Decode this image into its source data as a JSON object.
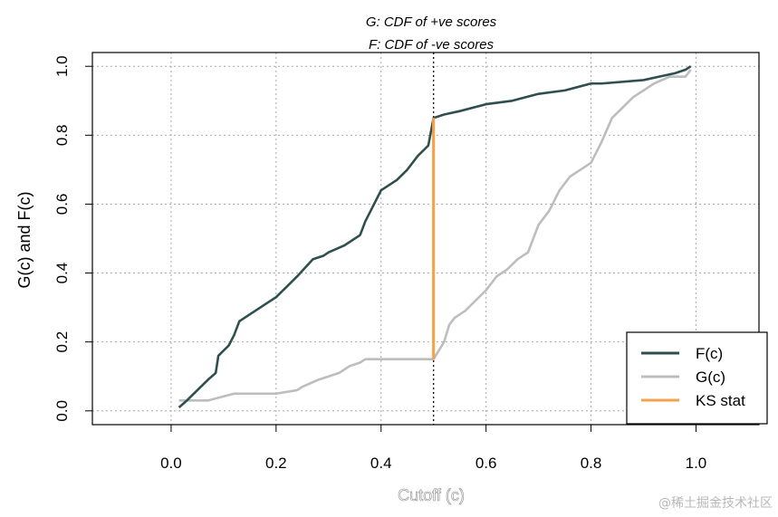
{
  "chart_data": {
    "type": "line",
    "title_line1": "G: CDF of +ve scores",
    "title_line2": "F: CDF of -ve scores",
    "xlabel": "Cutoff (c)",
    "ylabel": "G(c) and F(c)",
    "xlim": [
      -0.15,
      1.12
    ],
    "ylim": [
      -0.04,
      1.04
    ],
    "xticks": [
      0.0,
      0.2,
      0.4,
      0.6,
      0.8,
      1.0
    ],
    "xtick_labels": [
      "0.0",
      "0.2",
      "0.4",
      "0.6",
      "0.8",
      "1.0"
    ],
    "yticks": [
      0.0,
      0.2,
      0.4,
      0.6,
      0.8,
      1.0
    ],
    "ytick_labels": [
      "0.0",
      "0.2",
      "0.4",
      "0.6",
      "0.8",
      "1.0"
    ],
    "grid": true,
    "cutoff_line_x": 0.5,
    "legend_position": "bottom-right",
    "series": [
      {
        "name": "F(c)",
        "color": "#2f4f4f",
        "x": [
          0.015,
          0.03,
          0.05,
          0.07,
          0.085,
          0.09,
          0.11,
          0.12,
          0.13,
          0.15,
          0.2,
          0.22,
          0.24,
          0.27,
          0.29,
          0.3,
          0.33,
          0.36,
          0.37,
          0.38,
          0.39,
          0.4,
          0.43,
          0.45,
          0.47,
          0.49,
          0.5,
          0.52,
          0.55,
          0.6,
          0.65,
          0.7,
          0.75,
          0.8,
          0.82,
          0.9,
          0.93,
          0.96,
          0.98,
          0.99
        ],
        "y": [
          0.01,
          0.03,
          0.06,
          0.09,
          0.11,
          0.16,
          0.19,
          0.22,
          0.26,
          0.28,
          0.33,
          0.36,
          0.39,
          0.44,
          0.45,
          0.46,
          0.48,
          0.51,
          0.55,
          0.58,
          0.61,
          0.64,
          0.67,
          0.7,
          0.74,
          0.77,
          0.85,
          0.86,
          0.87,
          0.89,
          0.9,
          0.92,
          0.93,
          0.95,
          0.95,
          0.96,
          0.97,
          0.98,
          0.99,
          1.0
        ]
      },
      {
        "name": "G(c)",
        "color": "#bdbdbd",
        "x": [
          0.015,
          0.07,
          0.12,
          0.2,
          0.24,
          0.25,
          0.28,
          0.3,
          0.32,
          0.34,
          0.36,
          0.37,
          0.4,
          0.45,
          0.5,
          0.52,
          0.53,
          0.54,
          0.56,
          0.58,
          0.6,
          0.62,
          0.64,
          0.66,
          0.68,
          0.7,
          0.72,
          0.74,
          0.76,
          0.8,
          0.82,
          0.84,
          0.86,
          0.88,
          0.9,
          0.92,
          0.95,
          0.98,
          0.99
        ],
        "y": [
          0.03,
          0.03,
          0.05,
          0.05,
          0.06,
          0.07,
          0.09,
          0.1,
          0.11,
          0.13,
          0.14,
          0.15,
          0.15,
          0.15,
          0.15,
          0.2,
          0.25,
          0.27,
          0.29,
          0.32,
          0.35,
          0.39,
          0.41,
          0.44,
          0.46,
          0.54,
          0.58,
          0.64,
          0.68,
          0.72,
          0.78,
          0.85,
          0.88,
          0.91,
          0.93,
          0.95,
          0.97,
          0.97,
          0.99
        ]
      },
      {
        "name": "KS stat",
        "color": "#f4a24c",
        "x": [
          0.5,
          0.5
        ],
        "y": [
          0.15,
          0.85
        ]
      }
    ]
  },
  "watermark": "@稀土掘金技术社区"
}
